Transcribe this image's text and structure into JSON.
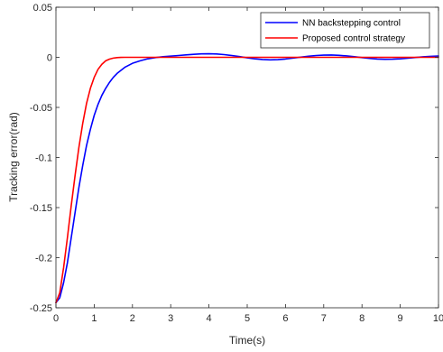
{
  "chart_data": {
    "type": "line",
    "xlabel": "Time(s)",
    "ylabel": "Tracking error(rad)",
    "xlim": [
      0,
      10
    ],
    "ylim": [
      -0.25,
      0.05
    ],
    "xticks": [
      "0",
      "1",
      "2",
      "3",
      "4",
      "5",
      "6",
      "7",
      "8",
      "9",
      "10"
    ],
    "yticks": [
      "0.05",
      "0",
      "-0.05",
      "-0.1",
      "-0.15",
      "-0.2",
      "-0.25"
    ],
    "grid": false,
    "legend_position": "top-right",
    "series": [
      {
        "name": "NN backstepping control",
        "color": "#0000ff",
        "x": [
          0,
          0.1,
          0.2,
          0.3,
          0.4,
          0.5,
          0.6,
          0.7,
          0.8,
          0.9,
          1.0,
          1.1,
          1.2,
          1.3,
          1.4,
          1.5,
          1.6,
          1.8,
          2.0,
          2.2,
          2.4,
          2.6,
          2.8,
          3.0,
          3.2,
          3.4,
          3.6,
          3.8,
          4.0,
          4.2,
          4.4,
          4.6,
          4.8,
          5.0,
          5.2,
          5.4,
          5.6,
          5.8,
          6.0,
          6.2,
          6.4,
          6.6,
          6.8,
          7.0,
          7.2,
          7.4,
          7.6,
          7.8,
          8.0,
          8.2,
          8.4,
          8.6,
          8.8,
          9.0,
          9.2,
          9.4,
          9.6,
          9.8,
          10.0
        ],
        "y": [
          -0.245,
          -0.24,
          -0.225,
          -0.205,
          -0.18,
          -0.155,
          -0.13,
          -0.108,
          -0.088,
          -0.072,
          -0.058,
          -0.047,
          -0.038,
          -0.031,
          -0.025,
          -0.02,
          -0.016,
          -0.01,
          -0.006,
          -0.0035,
          -0.0015,
          -0.0003,
          0.0006,
          0.0012,
          0.0018,
          0.0024,
          0.003,
          0.0034,
          0.0035,
          0.0033,
          0.0027,
          0.0018,
          0.0007,
          -0.0005,
          -0.0015,
          -0.0022,
          -0.0025,
          -0.0023,
          -0.0017,
          -0.0008,
          0.0002,
          0.0011,
          0.0018,
          0.0022,
          0.0023,
          0.002,
          0.0014,
          0.0006,
          -0.0003,
          -0.0011,
          -0.0017,
          -0.002,
          -0.0019,
          -0.0015,
          -0.0009,
          -0.0002,
          0.0005,
          0.001,
          0.0013
        ]
      },
      {
        "name": "Proposed control strategy",
        "color": "#ff0000",
        "x": [
          0,
          0.1,
          0.2,
          0.3,
          0.4,
          0.5,
          0.6,
          0.7,
          0.8,
          0.9,
          1.0,
          1.1,
          1.2,
          1.3,
          1.4,
          1.5,
          1.6,
          1.7,
          1.8,
          1.9,
          2.0,
          2.2,
          2.5,
          3.0,
          4.0,
          5.0,
          6.0,
          7.0,
          8.0,
          9.0,
          10.0
        ],
        "y": [
          -0.245,
          -0.235,
          -0.21,
          -0.18,
          -0.148,
          -0.118,
          -0.09,
          -0.066,
          -0.046,
          -0.031,
          -0.02,
          -0.012,
          -0.007,
          -0.0035,
          -0.0018,
          -0.0008,
          -0.0003,
          -0.0001,
          0.0,
          0.0,
          0.0,
          0.0,
          0.0,
          0.0,
          0.0,
          0.0,
          0.0,
          0.0,
          0.0,
          0.0,
          0.0
        ]
      }
    ]
  }
}
